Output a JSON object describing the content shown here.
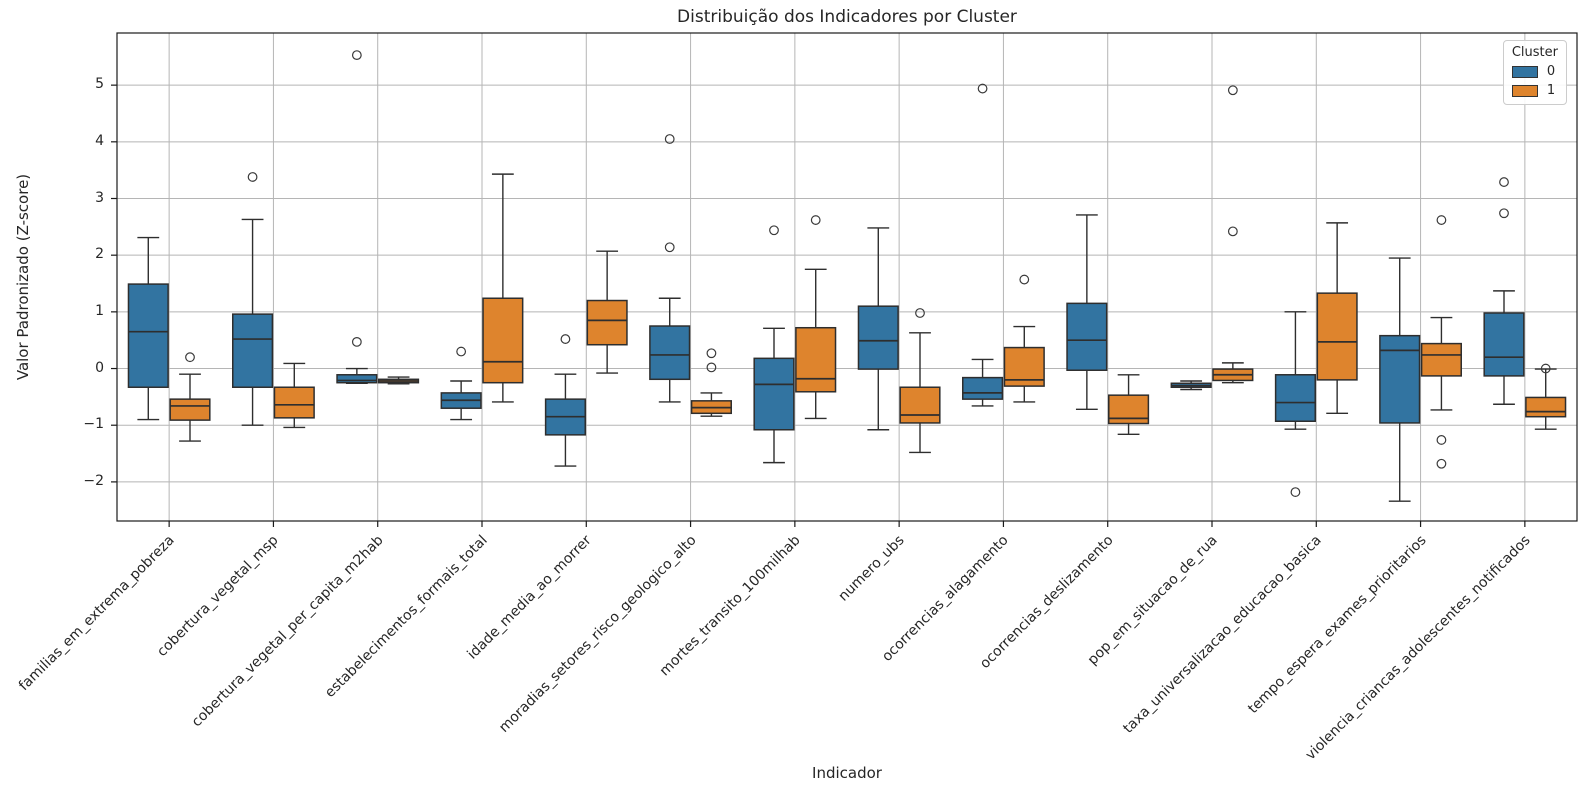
{
  "style": {
    "background": "#ffffff",
    "grid_color": "#b5b5b5",
    "spine_color": "#1a1a1a",
    "box_edge_color": "#2e2e2e",
    "outlier_edge_color": "#3a3a3a",
    "cluster0_color": "#3274A1",
    "cluster1_color": "#DE842D"
  },
  "chart_data": {
    "type": "grouped_boxplot",
    "title": "Distribuição dos Indicadores por Cluster",
    "xlabel": "Indicador",
    "ylabel": "Valor Padronizado (Z-score)",
    "legend_title": "Cluster",
    "legend_position": "upper right",
    "grid": true,
    "ylim": [
      -2.69,
      5.92
    ],
    "yticks": [
      5,
      4,
      3,
      2,
      1,
      0,
      -1,
      -2
    ],
    "categories": [
      "familias_em_extrema_pobreza",
      "cobertura_vegetal_msp",
      "cobertura_vegetal_per_capita_m2hab",
      "estabelecimentos_formais_total",
      "idade_media_ao_morrer",
      "moradias_setores_risco_geologico_alto",
      "mortes_transito_100milhab",
      "numero_ubs",
      "ocorrencias_alagamento",
      "ocorrencias_deslizamento",
      "pop_em_situacao_de_rua",
      "taxa_universalizacao_educacao_basica",
      "tempo_espera_exames_prioritarios",
      "violencia_criancas_adolescentes_notificados"
    ],
    "series": [
      {
        "name": "0",
        "color": "#3274A1",
        "boxes": [
          {
            "whislo": -0.9,
            "q1": -0.33,
            "med": 0.65,
            "q3": 1.49,
            "whishi": 2.31,
            "outliers": []
          },
          {
            "whislo": -1.0,
            "q1": -0.33,
            "med": 0.52,
            "q3": 0.96,
            "whishi": 2.63,
            "outliers": [
              3.38
            ]
          },
          {
            "whislo": -0.26,
            "q1": -0.25,
            "med": -0.21,
            "q3": -0.11,
            "whishi": 0.0,
            "outliers": [
              0.47,
              5.53
            ]
          },
          {
            "whislo": -0.9,
            "q1": -0.7,
            "med": -0.56,
            "q3": -0.43,
            "whishi": -0.22,
            "outliers": [
              0.3
            ]
          },
          {
            "whislo": -1.72,
            "q1": -1.17,
            "med": -0.85,
            "q3": -0.54,
            "whishi": -0.1,
            "outliers": [
              0.52
            ]
          },
          {
            "whislo": -0.59,
            "q1": -0.19,
            "med": 0.24,
            "q3": 0.75,
            "whishi": 1.24,
            "outliers": [
              2.14,
              4.05
            ]
          },
          {
            "whislo": -1.66,
            "q1": -1.08,
            "med": -0.28,
            "q3": 0.18,
            "whishi": 0.71,
            "outliers": [
              2.44
            ]
          },
          {
            "whislo": -1.08,
            "q1": -0.01,
            "med": 0.49,
            "q3": 1.1,
            "whishi": 2.48,
            "outliers": []
          },
          {
            "whislo": -0.66,
            "q1": -0.54,
            "med": -0.43,
            "q3": -0.16,
            "whishi": 0.16,
            "outliers": [
              4.94
            ]
          },
          {
            "whislo": -0.72,
            "q1": -0.03,
            "med": 0.5,
            "q3": 1.15,
            "whishi": 2.71,
            "outliers": []
          },
          {
            "whislo": -0.37,
            "q1": -0.33,
            "med": -0.3,
            "q3": -0.26,
            "whishi": -0.22,
            "outliers": []
          },
          {
            "whislo": -1.07,
            "q1": -0.93,
            "med": -0.6,
            "q3": -0.11,
            "whishi": 1.0,
            "outliers": [
              -2.18
            ]
          },
          {
            "whislo": -2.34,
            "q1": -0.96,
            "med": 0.32,
            "q3": 0.58,
            "whishi": 1.95,
            "outliers": []
          },
          {
            "whislo": -0.63,
            "q1": -0.13,
            "med": 0.2,
            "q3": 0.98,
            "whishi": 1.37,
            "outliers": [
              2.74,
              3.29
            ]
          }
        ]
      },
      {
        "name": "1",
        "color": "#DE842D",
        "boxes": [
          {
            "whislo": -1.28,
            "q1": -0.91,
            "med": -0.66,
            "q3": -0.54,
            "whishi": -0.1,
            "outliers": [
              0.2
            ]
          },
          {
            "whislo": -1.04,
            "q1": -0.87,
            "med": -0.64,
            "q3": -0.33,
            "whishi": 0.09,
            "outliers": []
          },
          {
            "whislo": -0.27,
            "q1": -0.25,
            "med": -0.22,
            "q3": -0.19,
            "whishi": -0.15,
            "outliers": []
          },
          {
            "whislo": -0.59,
            "q1": -0.25,
            "med": 0.12,
            "q3": 1.24,
            "whishi": 3.43,
            "outliers": []
          },
          {
            "whislo": -0.08,
            "q1": 0.42,
            "med": 0.85,
            "q3": 1.2,
            "whishi": 2.07,
            "outliers": []
          },
          {
            "whislo": -0.84,
            "q1": -0.79,
            "med": -0.69,
            "q3": -0.57,
            "whishi": -0.43,
            "outliers": [
              0.02,
              0.27
            ]
          },
          {
            "whislo": -0.88,
            "q1": -0.41,
            "med": -0.18,
            "q3": 0.72,
            "whishi": 1.75,
            "outliers": [
              2.62
            ]
          },
          {
            "whislo": -1.48,
            "q1": -0.96,
            "med": -0.82,
            "q3": -0.33,
            "whishi": 0.63,
            "outliers": [
              0.98
            ]
          },
          {
            "whislo": -0.59,
            "q1": -0.31,
            "med": -0.2,
            "q3": 0.37,
            "whishi": 0.74,
            "outliers": [
              1.57
            ]
          },
          {
            "whislo": -1.16,
            "q1": -0.97,
            "med": -0.88,
            "q3": -0.47,
            "whishi": -0.11,
            "outliers": []
          },
          {
            "whislo": -0.25,
            "q1": -0.21,
            "med": -0.11,
            "q3": -0.01,
            "whishi": 0.1,
            "outliers": [
              2.42,
              4.91
            ]
          },
          {
            "whislo": -0.79,
            "q1": -0.2,
            "med": 0.47,
            "q3": 1.33,
            "whishi": 2.57,
            "outliers": []
          },
          {
            "whislo": -0.73,
            "q1": -0.13,
            "med": 0.24,
            "q3": 0.44,
            "whishi": 0.9,
            "outliers": [
              2.62,
              -1.26,
              -1.68
            ]
          },
          {
            "whislo": -1.07,
            "q1": -0.85,
            "med": -0.76,
            "q3": -0.51,
            "whishi": -0.01,
            "outliers": [
              0.0
            ]
          }
        ]
      }
    ]
  }
}
